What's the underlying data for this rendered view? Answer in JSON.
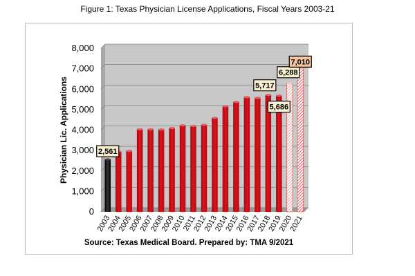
{
  "figure": {
    "title": "Figure 1:  Texas Physician License Applications, Fiscal Years 2003-21",
    "source": "Source: Texas Medical Board. Prepared by: TMA 9/2021"
  },
  "chart_data": {
    "type": "bar",
    "title": "Figure 1:  Texas Physician License Applications, Fiscal Years 2003-21",
    "xlabel": "",
    "ylabel": "Physician Lic. Applications",
    "ylim": [
      0,
      8000
    ],
    "yticks": [
      "0",
      "1,000",
      "2,000",
      "3,000",
      "4,000",
      "5,000",
      "6,000",
      "7,000",
      "8,000"
    ],
    "grid": true,
    "categories": [
      "2003",
      "2004",
      "2005",
      "2006",
      "2007",
      "2008",
      "2009",
      "2010",
      "2011",
      "2012",
      "2013",
      "2014",
      "2015",
      "2016",
      "2017",
      "2018",
      "2019",
      "2020",
      "2021"
    ],
    "values": [
      2561,
      2950,
      2980,
      4040,
      4040,
      4030,
      4100,
      4230,
      4200,
      4260,
      4600,
      5170,
      5380,
      5610,
      5580,
      5717,
      5686,
      6288,
      7010
    ],
    "bar_styles": [
      "black",
      "red",
      "red",
      "red",
      "red",
      "red",
      "red",
      "red",
      "red",
      "red",
      "red",
      "red",
      "red",
      "red",
      "red",
      "red",
      "red",
      "hatched-light",
      "hatched-dark"
    ],
    "data_labels": [
      {
        "category": "2003",
        "text": "2,561"
      },
      {
        "category": "2018",
        "text": "5,717"
      },
      {
        "category": "2019",
        "text": "5,686"
      },
      {
        "category": "2020",
        "text": "6,288"
      },
      {
        "category": "2021",
        "text": "7,010"
      }
    ],
    "colors": {
      "red": "#e0101a",
      "black": "#111111",
      "hatched_light": "#f2a0a0",
      "hatched_dark": "#e04a4a",
      "label_fill": "#f8efd0",
      "label_fill_highlight": "#f8c49c"
    }
  }
}
